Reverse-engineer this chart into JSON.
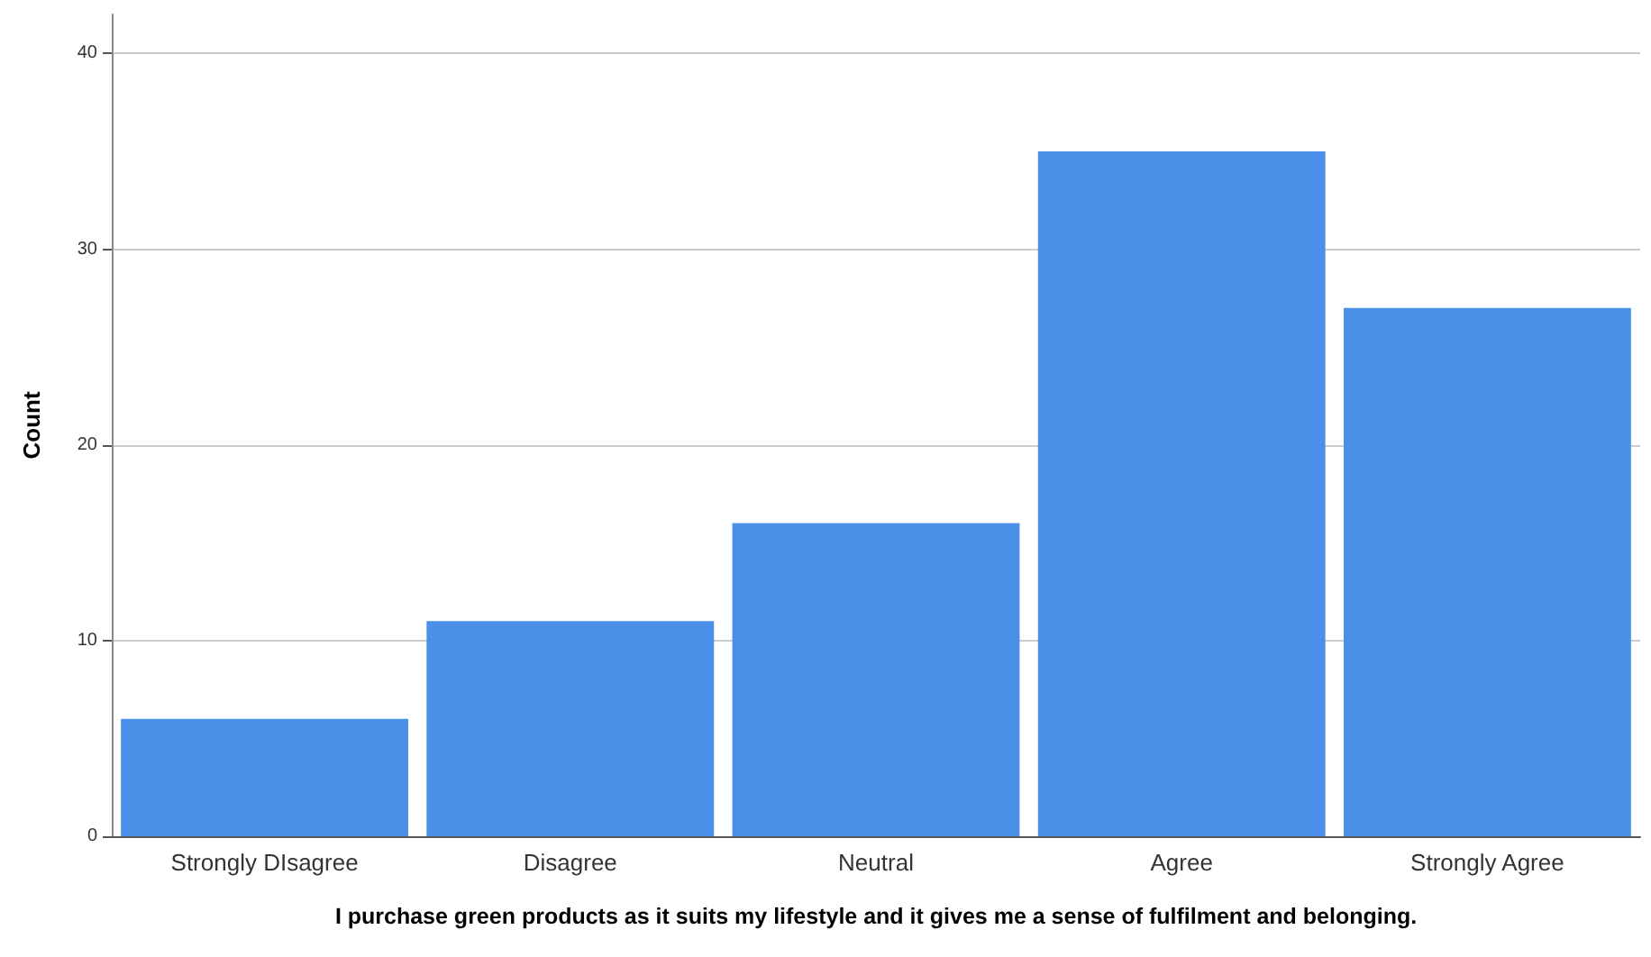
{
  "chart_data": {
    "type": "bar",
    "xlabel": "I purchase green products as it suits my lifestyle and it gives me a sense of fulfilment and belonging.",
    "ylabel": "Count",
    "categories": [
      "Strongly DIsagree",
      "Disagree",
      "Neutral",
      "Agree",
      "Strongly Agree"
    ],
    "values": [
      6,
      11,
      16,
      35,
      27
    ],
    "color": "#4a8fe8",
    "ylim": [
      0,
      42
    ],
    "yticks": [
      0,
      10,
      20,
      30,
      40
    ],
    "grid": "y"
  }
}
